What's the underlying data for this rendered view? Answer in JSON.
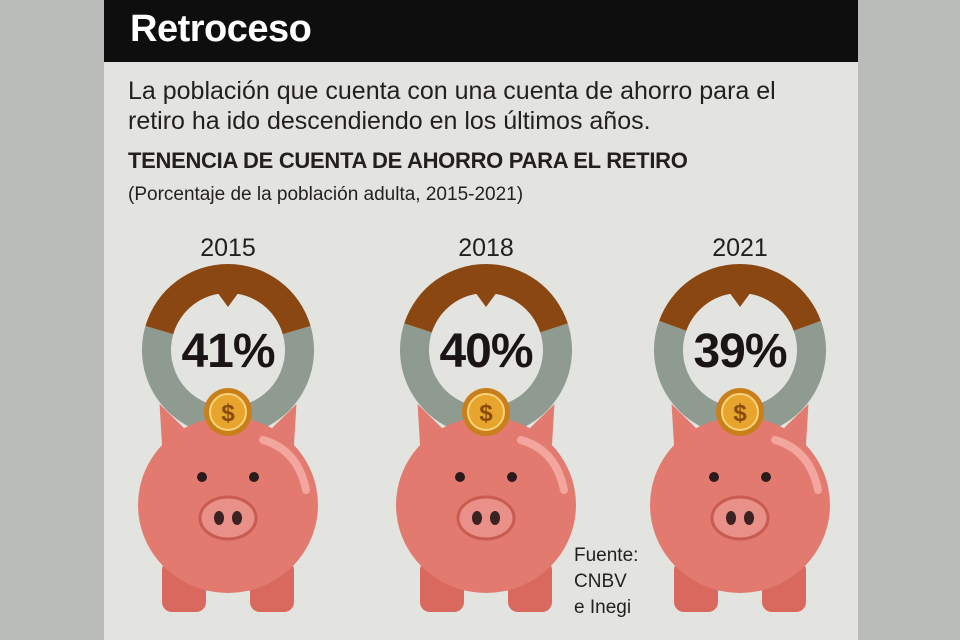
{
  "header": {
    "title": "Retroceso"
  },
  "description": "La población que cuenta con una cuenta de ahorro para el retiro ha ido descendiendo en los últimos años.",
  "chart_data": {
    "type": "pie",
    "title": "TENENCIA DE CUENTA DE AHORRO PARA EL RETIRO",
    "subtitle": "(Porcentaje de la población adulta, 2015-2021)",
    "unit": "%",
    "categories": [
      "2015",
      "2018",
      "2021"
    ],
    "values": [
      41,
      40,
      39
    ],
    "labels": [
      "41%",
      "40%",
      "39%"
    ],
    "colors": {
      "share": "#8a4712",
      "rest": "#8f9b91",
      "pig": "#e27a6f",
      "coin": "#e8a52d"
    }
  },
  "source": {
    "lines": [
      "Fuente:",
      "CNBV",
      "e Inegi"
    ]
  }
}
